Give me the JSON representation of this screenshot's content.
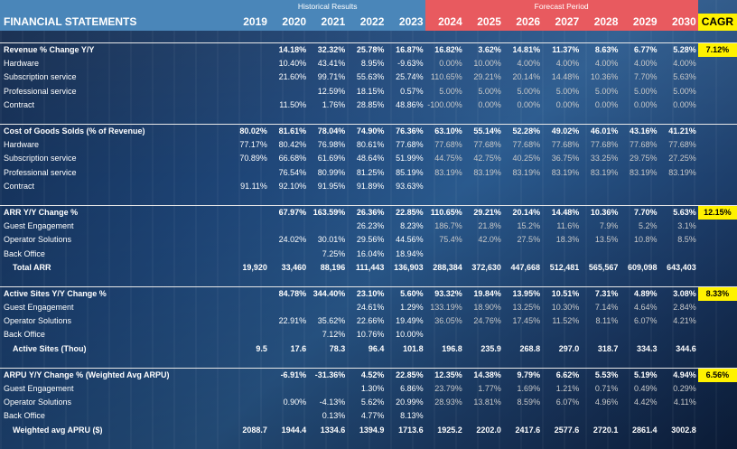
{
  "header": {
    "title": "FINANCIAL STATEMENTS",
    "historical_label": "Historical Results",
    "forecast_label": "Forecast Period",
    "cagr_label": "CAGR",
    "years": [
      "2019",
      "2020",
      "2021",
      "2022",
      "2023",
      "2024",
      "2025",
      "2026",
      "2027",
      "2028",
      "2029",
      "2030"
    ]
  },
  "rows": [
    {
      "type": "blank"
    },
    {
      "type": "sec",
      "label": "Revenue % Change Y/Y",
      "v": [
        "",
        "14.18%",
        "32.32%",
        "25.78%",
        "16.87%",
        "16.82%",
        "3.62%",
        "14.81%",
        "11.37%",
        "8.63%",
        "6.77%",
        "5.28%"
      ],
      "cagr": "7.12%"
    },
    {
      "type": "item",
      "label": "Hardware",
      "v": [
        "",
        "10.40%",
        "43.41%",
        "8.95%",
        "-9.63%",
        "0.00%",
        "10.00%",
        "4.00%",
        "4.00%",
        "4.00%",
        "4.00%",
        "4.00%"
      ]
    },
    {
      "type": "item",
      "label": "Subscription service",
      "v": [
        "",
        "21.60%",
        "99.71%",
        "55.63%",
        "25.74%",
        "110.65%",
        "29.21%",
        "20.14%",
        "14.48%",
        "10.36%",
        "7.70%",
        "5.63%"
      ]
    },
    {
      "type": "item",
      "label": "Professional service",
      "v": [
        "",
        "",
        "12.59%",
        "18.15%",
        "0.57%",
        "5.00%",
        "5.00%",
        "5.00%",
        "5.00%",
        "5.00%",
        "5.00%",
        "5.00%"
      ]
    },
    {
      "type": "item",
      "label": "Contract",
      "v": [
        "",
        "11.50%",
        "1.76%",
        "28.85%",
        "48.86%",
        "-100.00%",
        "0.00%",
        "0.00%",
        "0.00%",
        "0.00%",
        "0.00%",
        "0.00%"
      ]
    },
    {
      "type": "blank"
    },
    {
      "type": "sec",
      "label": "Cost of Goods Solds (% of Revenue)",
      "v": [
        "80.02%",
        "81.61%",
        "78.04%",
        "74.90%",
        "76.36%",
        "63.10%",
        "55.14%",
        "52.28%",
        "49.02%",
        "46.01%",
        "43.16%",
        "41.21%"
      ]
    },
    {
      "type": "item",
      "label": "Hardware",
      "v": [
        "77.17%",
        "80.42%",
        "76.98%",
        "80.61%",
        "77.68%",
        "77.68%",
        "77.68%",
        "77.68%",
        "77.68%",
        "77.68%",
        "77.68%",
        "77.68%"
      ]
    },
    {
      "type": "item",
      "label": "Subscription service",
      "v": [
        "70.89%",
        "66.68%",
        "61.69%",
        "48.64%",
        "51.99%",
        "44.75%",
        "42.75%",
        "40.25%",
        "36.75%",
        "33.25%",
        "29.75%",
        "27.25%"
      ]
    },
    {
      "type": "item",
      "label": "Professional service",
      "v": [
        "",
        "76.54%",
        "80.99%",
        "81.25%",
        "85.19%",
        "83.19%",
        "83.19%",
        "83.19%",
        "83.19%",
        "83.19%",
        "83.19%",
        "83.19%"
      ]
    },
    {
      "type": "item",
      "label": "Contract",
      "v": [
        "91.11%",
        "92.10%",
        "91.95%",
        "91.89%",
        "93.63%",
        "",
        "",
        "",
        "",
        "",
        "",
        ""
      ]
    },
    {
      "type": "blank"
    },
    {
      "type": "sec",
      "label": "ARR Y/Y Change %",
      "v": [
        "",
        "67.97%",
        "163.59%",
        "26.36%",
        "22.85%",
        "110.65%",
        "29.21%",
        "20.14%",
        "14.48%",
        "10.36%",
        "7.70%",
        "5.63%"
      ],
      "cagr": "12.15%"
    },
    {
      "type": "item",
      "label": "Guest Engagement",
      "v": [
        "",
        "",
        "",
        "26.23%",
        "8.23%",
        "186.7%",
        "21.8%",
        "15.2%",
        "11.6%",
        "7.9%",
        "5.2%",
        "3.1%"
      ]
    },
    {
      "type": "item",
      "label": "Operator Solutions",
      "v": [
        "",
        "24.02%",
        "30.01%",
        "29.56%",
        "44.56%",
        "75.4%",
        "42.0%",
        "27.5%",
        "18.3%",
        "13.5%",
        "10.8%",
        "8.5%"
      ]
    },
    {
      "type": "item",
      "label": "Back Office",
      "v": [
        "",
        "",
        "7.25%",
        "16.04%",
        "18.94%",
        "",
        "",
        "",
        "",
        "",
        "",
        ""
      ]
    },
    {
      "type": "tot",
      "label": "Total ARR",
      "v": [
        "19,920",
        "33,460",
        "88,196",
        "111,443",
        "136,903",
        "288,384",
        "372,630",
        "447,668",
        "512,481",
        "565,567",
        "609,098",
        "643,403"
      ]
    },
    {
      "type": "blank"
    },
    {
      "type": "sec",
      "label": "Active Sites  Y/Y Change %",
      "v": [
        "",
        "84.78%",
        "344.40%",
        "23.10%",
        "5.60%",
        "93.32%",
        "19.84%",
        "13.95%",
        "10.51%",
        "7.31%",
        "4.89%",
        "3.08%"
      ],
      "cagr": "8.33%"
    },
    {
      "type": "item",
      "label": "Guest Engagement",
      "v": [
        "",
        "",
        "",
        "24.61%",
        "1.29%",
        "133.19%",
        "18.90%",
        "13.25%",
        "10.30%",
        "7.14%",
        "4.64%",
        "2.84%"
      ]
    },
    {
      "type": "item",
      "label": "Operator Solutions",
      "v": [
        "",
        "22.91%",
        "35.62%",
        "22.66%",
        "19.49%",
        "36.05%",
        "24.76%",
        "17.45%",
        "11.52%",
        "8.11%",
        "6.07%",
        "4.21%"
      ]
    },
    {
      "type": "item",
      "label": "Back Office",
      "v": [
        "",
        "",
        "7.12%",
        "10.76%",
        "10.00%",
        "",
        "",
        "",
        "",
        "",
        "",
        ""
      ]
    },
    {
      "type": "tot",
      "label": "Active Sites (Thou)",
      "v": [
        "9.5",
        "17.6",
        "78.3",
        "96.4",
        "101.8",
        "196.8",
        "235.9",
        "268.8",
        "297.0",
        "318.7",
        "334.3",
        "344.6"
      ]
    },
    {
      "type": "blank"
    },
    {
      "type": "sec",
      "label": "ARPU Y/Y Change % (Weighted Avg ARPU)",
      "v": [
        "",
        "-6.91%",
        "-31.36%",
        "4.52%",
        "22.85%",
        "12.35%",
        "14.38%",
        "9.79%",
        "6.62%",
        "5.53%",
        "5.19%",
        "4.94%"
      ],
      "cagr": "6.56%"
    },
    {
      "type": "item",
      "label": "Guest Engagement",
      "v": [
        "",
        "",
        "",
        "1.30%",
        "6.86%",
        "23.79%",
        "1.77%",
        "1.69%",
        "1.21%",
        "0.71%",
        "0.49%",
        "0.29%"
      ]
    },
    {
      "type": "item",
      "label": "Operator Solutions",
      "v": [
        "",
        "0.90%",
        "-4.13%",
        "5.62%",
        "20.99%",
        "28.93%",
        "13.81%",
        "8.59%",
        "6.07%",
        "4.96%",
        "4.42%",
        "4.11%"
      ]
    },
    {
      "type": "item",
      "label": "Back Office",
      "v": [
        "",
        "",
        "0.13%",
        "4.77%",
        "8.13%",
        "",
        "",
        "",
        "",
        "",
        "",
        ""
      ]
    },
    {
      "type": "tot",
      "label": "Weighted avg APRU ($)",
      "v": [
        "2088.7",
        "1944.4",
        "1334.6",
        "1394.9",
        "1713.6",
        "1925.2",
        "2202.0",
        "2417.6",
        "2577.6",
        "2720.1",
        "2861.4",
        "3002.8"
      ]
    }
  ]
}
